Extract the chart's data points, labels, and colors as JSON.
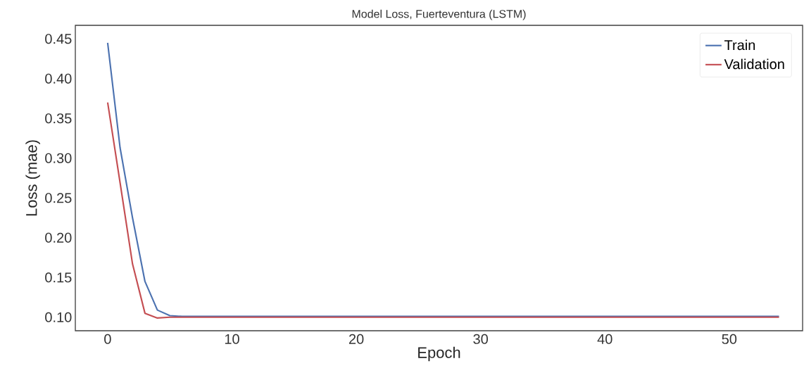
{
  "chart_data": {
    "type": "line",
    "title": "Model Loss, Fuerteventura (LSTM)",
    "xlabel": "Epoch",
    "ylabel": "Loss (mae)",
    "x": [
      0,
      1,
      2,
      3,
      4,
      5,
      6,
      7,
      8,
      9,
      10,
      11,
      12,
      13,
      14,
      15,
      16,
      17,
      18,
      19,
      20,
      21,
      22,
      23,
      24,
      25,
      26,
      27,
      28,
      29,
      30,
      31,
      32,
      33,
      34,
      35,
      36,
      37,
      38,
      39,
      40,
      41,
      42,
      43,
      44,
      45,
      46,
      47,
      48,
      49,
      50,
      51,
      52,
      53,
      54
    ],
    "series": [
      {
        "name": "Train",
        "color": "#4c72b0",
        "values": [
          0.445,
          0.313,
          0.225,
          0.145,
          0.109,
          0.102,
          0.101,
          0.101,
          0.101,
          0.101,
          0.101,
          0.101,
          0.101,
          0.101,
          0.101,
          0.101,
          0.101,
          0.101,
          0.101,
          0.101,
          0.101,
          0.101,
          0.101,
          0.101,
          0.101,
          0.101,
          0.101,
          0.101,
          0.101,
          0.101,
          0.101,
          0.101,
          0.101,
          0.101,
          0.101,
          0.101,
          0.101,
          0.101,
          0.101,
          0.101,
          0.101,
          0.101,
          0.101,
          0.101,
          0.101,
          0.101,
          0.101,
          0.101,
          0.101,
          0.101,
          0.101,
          0.101,
          0.101,
          0.101,
          0.101
        ]
      },
      {
        "name": "Validation",
        "color": "#c44e52",
        "values": [
          0.37,
          0.269,
          0.167,
          0.105,
          0.099,
          0.1,
          0.1,
          0.1,
          0.1,
          0.1,
          0.1,
          0.1,
          0.1,
          0.1,
          0.1,
          0.1,
          0.1,
          0.1,
          0.1,
          0.1,
          0.1,
          0.1,
          0.1,
          0.1,
          0.1,
          0.1,
          0.1,
          0.1,
          0.1,
          0.1,
          0.1,
          0.1,
          0.1,
          0.1,
          0.1,
          0.1,
          0.1,
          0.1,
          0.1,
          0.1,
          0.1,
          0.1,
          0.1,
          0.1,
          0.1,
          0.1,
          0.1,
          0.1,
          0.1,
          0.1,
          0.1,
          0.1,
          0.1,
          0.1,
          0.1
        ]
      }
    ],
    "xlim": [
      -2.6,
      55.9
    ],
    "ylim": [
      0.083,
      0.467
    ],
    "xticks": [
      0,
      10,
      20,
      30,
      40,
      50
    ],
    "yticks": [
      {
        "value": 0.1,
        "label": "0.10"
      },
      0.15,
      {
        "value": 0.2,
        "label": "0.20"
      },
      0.25,
      {
        "value": 0.3,
        "label": "0.30"
      },
      0.35,
      {
        "value": 0.4,
        "label": "0.40"
      },
      0.45
    ],
    "grid": false,
    "legend": "top right",
    "marker": "none",
    "line_style": "solid"
  }
}
